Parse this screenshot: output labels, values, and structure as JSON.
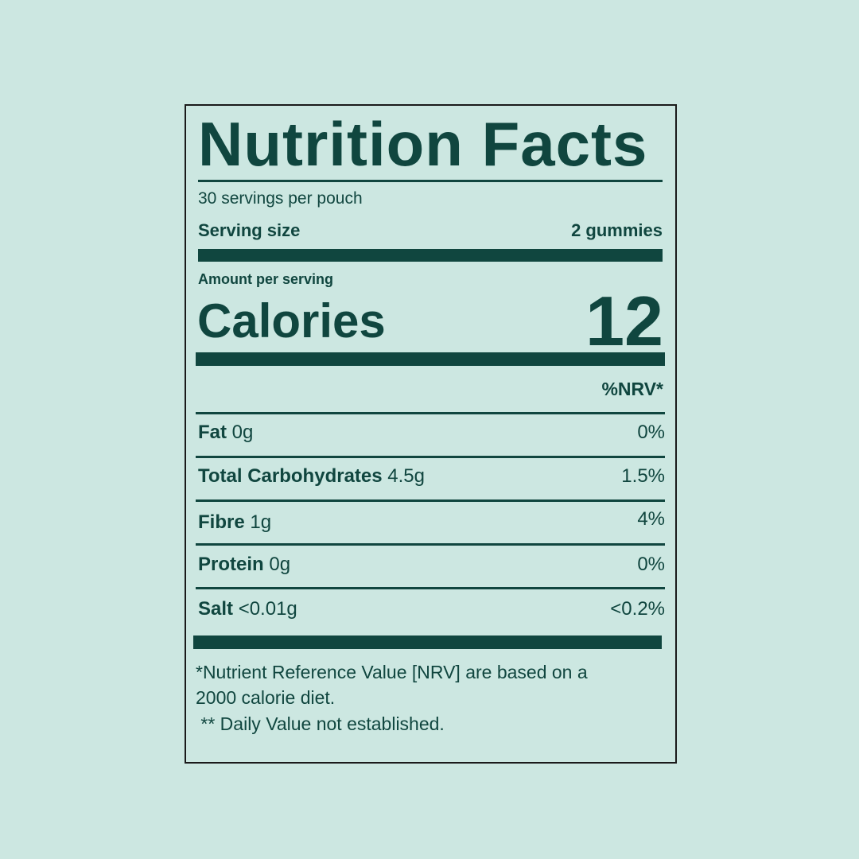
{
  "colors": {
    "background": "#cce7e1",
    "ink": "#10463f",
    "border": "#1a1a1a"
  },
  "title": "Nutrition Facts",
  "servings_per_container": "30 servings per pouch",
  "serving_size": {
    "label": "Serving size",
    "value": "2 gummies"
  },
  "amount_per_serving": "Amount per serving",
  "calories": {
    "label": "Calories",
    "value": "12"
  },
  "nrv_header": "%NRV*",
  "nutrients": [
    {
      "name": "Fat",
      "amount": "0g",
      "nrv": "0%"
    },
    {
      "name": "Total Carbohydrates",
      "amount": "4.5g",
      "nrv": "1.5%"
    },
    {
      "name": "Fibre",
      "amount": "1g",
      "nrv": "4%"
    },
    {
      "name": "Protein",
      "amount": "0g",
      "nrv": "0%"
    },
    {
      "name": "Salt",
      "amount": "<0.01g",
      "nrv": "<0.2%"
    }
  ],
  "footnotes": [
    "*Nutrient Reference Value [NRV] are based on a",
    "2000 calorie diet.",
    " ** Daily Value not established."
  ]
}
